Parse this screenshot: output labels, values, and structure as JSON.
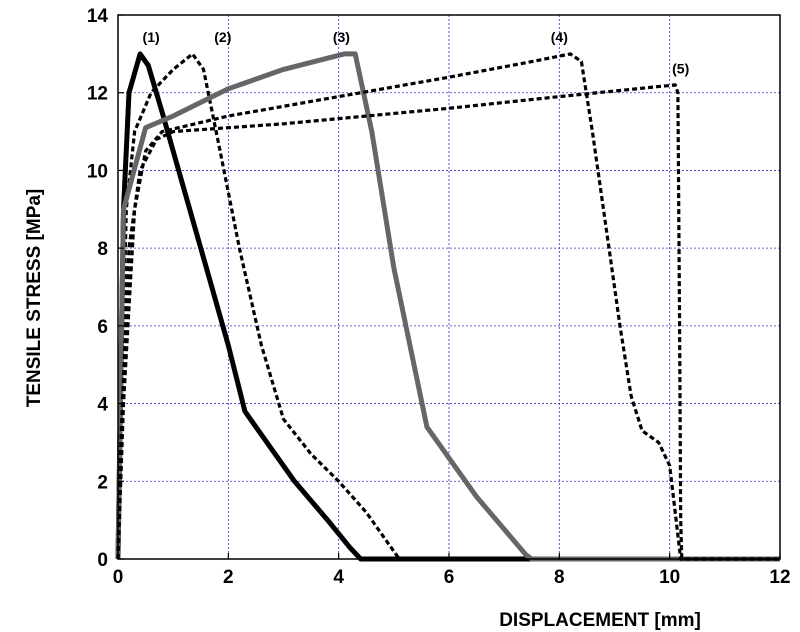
{
  "chart_data": {
    "type": "line",
    "title": "",
    "xlabel": "DISPLACEMENT [mm]",
    "ylabel": "TENSILE STRESS [MPa]",
    "xlim": [
      0,
      12
    ],
    "ylim": [
      0,
      14
    ],
    "xticks": [
      0,
      2,
      4,
      6,
      8,
      10,
      12
    ],
    "yticks": [
      0,
      2,
      4,
      6,
      8,
      10,
      12,
      14
    ],
    "grid": true,
    "grid_color": "#3333cc",
    "series": [
      {
        "label": "(1)",
        "color": "#000000",
        "dash": "solid",
        "weight": "heavy",
        "points": [
          [
            0,
            0
          ],
          [
            0.1,
            9.0
          ],
          [
            0.2,
            12.0
          ],
          [
            0.4,
            13.0
          ],
          [
            0.55,
            12.7
          ],
          [
            0.8,
            11.5
          ],
          [
            1.2,
            9.5
          ],
          [
            1.6,
            7.5
          ],
          [
            2.0,
            5.5
          ],
          [
            2.3,
            3.8
          ],
          [
            2.6,
            3.2
          ],
          [
            3.2,
            2.0
          ],
          [
            3.8,
            1.0
          ],
          [
            4.2,
            0.3
          ],
          [
            4.4,
            0.0
          ],
          [
            12,
            0
          ]
        ]
      },
      {
        "label": "(2)",
        "color": "#000000",
        "dash": "dashed",
        "weight": "medium",
        "points": [
          [
            0,
            0
          ],
          [
            0.15,
            9.0
          ],
          [
            0.3,
            11.0
          ],
          [
            0.6,
            12.0
          ],
          [
            1.0,
            12.6
          ],
          [
            1.35,
            13.0
          ],
          [
            1.55,
            12.6
          ],
          [
            1.85,
            10.5
          ],
          [
            2.2,
            8.0
          ],
          [
            2.6,
            5.5
          ],
          [
            3.0,
            3.6
          ],
          [
            3.5,
            2.7
          ],
          [
            4.0,
            2.0
          ],
          [
            4.5,
            1.2
          ],
          [
            4.9,
            0.4
          ],
          [
            5.1,
            0.0
          ],
          [
            12,
            0
          ]
        ]
      },
      {
        "label": "(3)",
        "color": "#666666",
        "dash": "solid",
        "weight": "heavy",
        "points": [
          [
            0,
            0
          ],
          [
            0.1,
            9.0
          ],
          [
            0.5,
            11.1
          ],
          [
            1.0,
            11.4
          ],
          [
            2.0,
            12.1
          ],
          [
            3.0,
            12.6
          ],
          [
            4.1,
            13.0
          ],
          [
            4.3,
            13.0
          ],
          [
            4.6,
            11.0
          ],
          [
            5.0,
            7.5
          ],
          [
            5.6,
            3.4
          ],
          [
            6.5,
            1.6
          ],
          [
            7.4,
            0.1
          ],
          [
            7.5,
            0.0
          ],
          [
            12,
            0
          ]
        ]
      },
      {
        "label": "(4)",
        "color": "#000000",
        "dash": "dashed",
        "weight": "medium",
        "points": [
          [
            0,
            0
          ],
          [
            0.1,
            4.0
          ],
          [
            0.3,
            9.0
          ],
          [
            0.5,
            10.5
          ],
          [
            0.8,
            11.0
          ],
          [
            2.0,
            11.4
          ],
          [
            4.0,
            11.9
          ],
          [
            6.0,
            12.4
          ],
          [
            7.5,
            12.8
          ],
          [
            8.2,
            13.0
          ],
          [
            8.4,
            12.8
          ],
          [
            8.6,
            11.0
          ],
          [
            8.9,
            8.0
          ],
          [
            9.1,
            6.0
          ],
          [
            9.3,
            4.2
          ],
          [
            9.5,
            3.3
          ],
          [
            9.8,
            3.0
          ],
          [
            10.0,
            2.4
          ],
          [
            10.1,
            1.2
          ],
          [
            10.2,
            0.0
          ],
          [
            12,
            0
          ]
        ]
      },
      {
        "label": "(5)",
        "color": "#000000",
        "dash": "dashed",
        "weight": "medium",
        "points": [
          [
            0,
            0
          ],
          [
            0.05,
            3.0
          ],
          [
            0.2,
            8.0
          ],
          [
            0.4,
            10.0
          ],
          [
            0.7,
            10.8
          ],
          [
            1.0,
            11.0
          ],
          [
            3.0,
            11.2
          ],
          [
            6.0,
            11.6
          ],
          [
            8.0,
            11.9
          ],
          [
            10.1,
            12.2
          ],
          [
            10.15,
            12.0
          ],
          [
            10.18,
            6.0
          ],
          [
            10.2,
            1.0
          ],
          [
            10.22,
            0.0
          ],
          [
            12,
            0
          ]
        ]
      }
    ],
    "annotations": [
      {
        "text": "(1)",
        "x": 0.6,
        "y": 13.3
      },
      {
        "text": "(2)",
        "x": 1.9,
        "y": 13.3
      },
      {
        "text": "(3)",
        "x": 4.05,
        "y": 13.3
      },
      {
        "text": "(4)",
        "x": 8.0,
        "y": 13.3
      },
      {
        "text": "(5)",
        "x": 10.2,
        "y": 12.5
      }
    ]
  }
}
